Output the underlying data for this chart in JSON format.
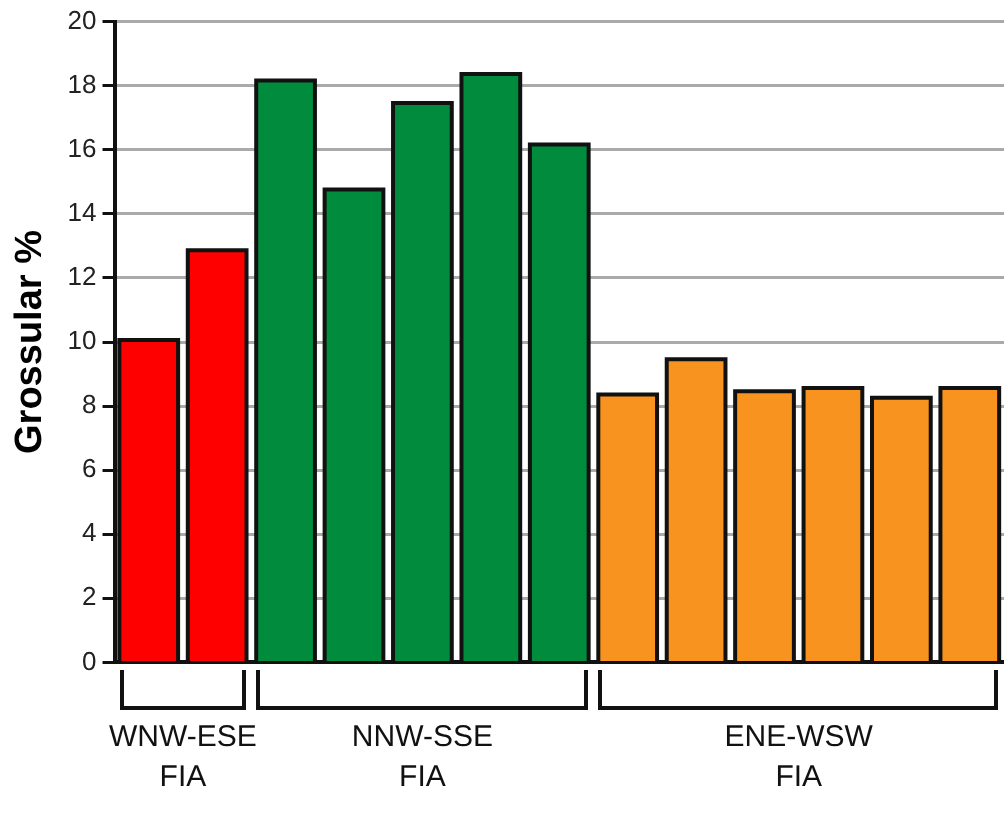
{
  "chart_data": {
    "type": "bar",
    "ylabel": "Grossular %",
    "categories": [
      null,
      null,
      null,
      null,
      null,
      null,
      null,
      null,
      null,
      null,
      null,
      null,
      null
    ],
    "values": [
      10.0,
      12.8,
      18.1,
      14.7,
      17.4,
      18.3,
      16.1,
      8.3,
      9.4,
      8.4,
      8.5,
      8.2,
      8.5
    ],
    "colors": [
      "#ff0000",
      "#ff0000",
      "#008c3c",
      "#008c3c",
      "#008c3c",
      "#008c3c",
      "#008c3c",
      "#f7931e",
      "#f7931e",
      "#f7931e",
      "#f7931e",
      "#f7931e",
      "#f7931e"
    ],
    "ylim": [
      0,
      20
    ],
    "yticks": [
      0,
      2,
      4,
      6,
      8,
      10,
      12,
      14,
      16,
      18,
      20
    ],
    "grid": "y",
    "annotations": [
      "WNW-ESE\nFIA",
      "NNW-SSE\nFIA",
      "ENE-WSW\nFIA"
    ]
  }
}
